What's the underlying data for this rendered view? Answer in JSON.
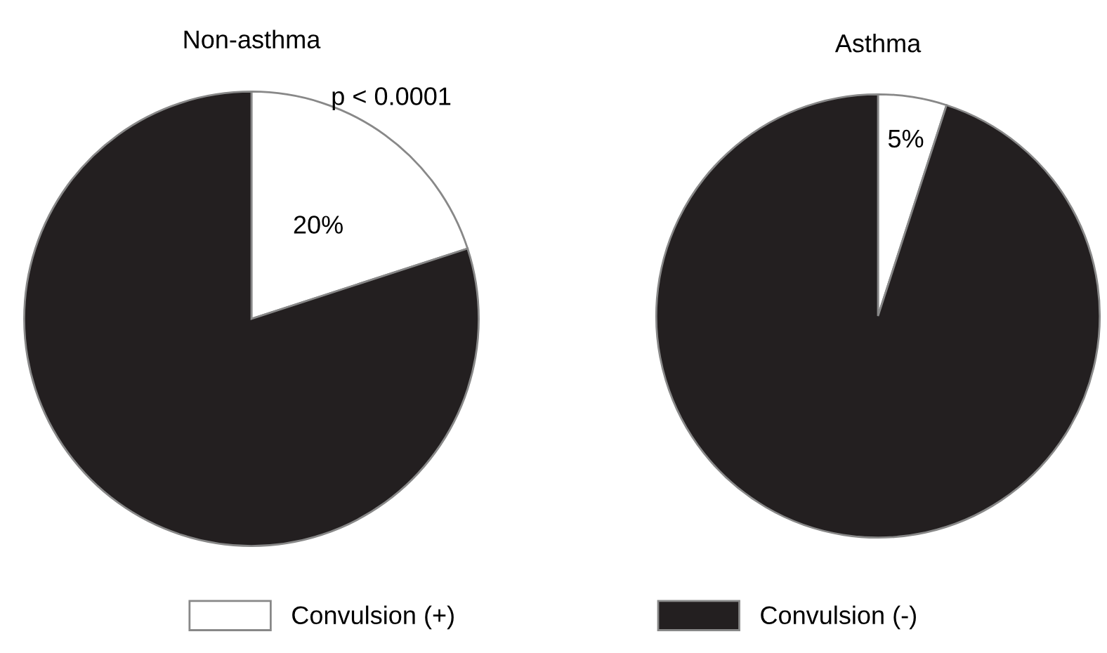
{
  "chart_data": [
    {
      "type": "pie",
      "title": "Non-asthma",
      "categories": [
        "Convulsion (+)",
        "Convulsion (-)"
      ],
      "values": [
        20,
        80
      ],
      "colors": [
        "#ffffff",
        "#231f20"
      ],
      "value_labels": [
        "20%",
        null
      ],
      "annotations": [
        "p < 0.0001"
      ],
      "legend": "bottom"
    },
    {
      "type": "pie",
      "title": "Asthma",
      "categories": [
        null,
        null
      ],
      "values": [
        5,
        95
      ],
      "colors": [
        "#ffffff",
        "#231f20"
      ],
      "value_labels": [
        "5%",
        null
      ]
    }
  ]
}
